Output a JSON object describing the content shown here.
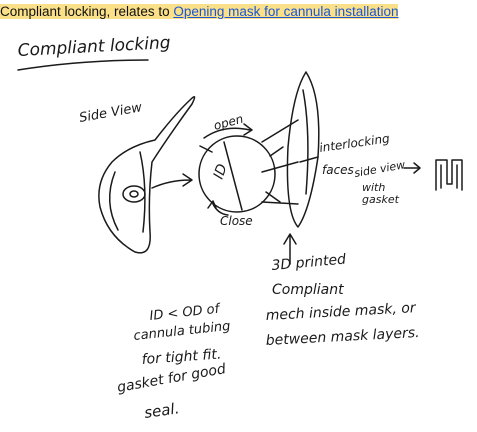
{
  "header": {
    "prefix": "Compliant locking, relates to ",
    "link": "Opening mask for cannula installation"
  },
  "sketch": {
    "title": "Compliant locking",
    "side_view": "Side View",
    "open": "open",
    "close": "Close",
    "id_label": "ID",
    "interlocking_1": "interlocking",
    "interlocking_2": "faces",
    "side_view_right": "side view",
    "with": "with",
    "gasket": "gasket",
    "printed_1": "3D printed",
    "printed_2": "Compliant",
    "printed_3": "mech inside mask, or",
    "printed_4": "between mask layers.",
    "id_od_1": "ID < OD of",
    "id_od_2": "cannula tubing",
    "id_od_3": "for tight fit.",
    "gasket_1": "gasket for good",
    "gasket_2": "seal."
  }
}
